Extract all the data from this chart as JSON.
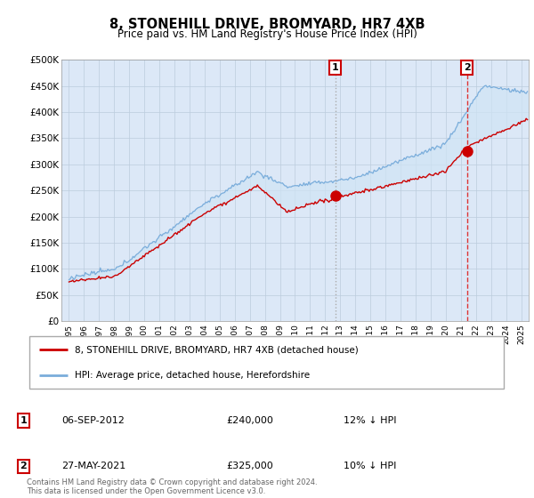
{
  "title": "8, STONEHILL DRIVE, BROMYARD, HR7 4XB",
  "subtitle": "Price paid vs. HM Land Registry's House Price Index (HPI)",
  "legend_line1": "8, STONEHILL DRIVE, BROMYARD, HR7 4XB (detached house)",
  "legend_line2": "HPI: Average price, detached house, Herefordshire",
  "annotation1_num": "1",
  "annotation1_date": "06-SEP-2012",
  "annotation1_price": "£240,000",
  "annotation1_hpi": "12% ↓ HPI",
  "annotation2_num": "2",
  "annotation2_date": "27-MAY-2021",
  "annotation2_price": "£325,000",
  "annotation2_hpi": "10% ↓ HPI",
  "footer": "Contains HM Land Registry data © Crown copyright and database right 2024.\nThis data is licensed under the Open Government Licence v3.0.",
  "red_color": "#cc0000",
  "blue_color": "#7aaddb",
  "fill_color": "#d0e4f5",
  "vline1_color": "#aaaaaa",
  "vline2_color": "#dd3333",
  "background_color": "#dce8f7",
  "grid_color": "#bbccdd",
  "sale1_year": 2012.67,
  "sale2_year": 2021.41,
  "sale1_price": 240000,
  "sale2_price": 325000,
  "ylim_min": 0,
  "ylim_max": 500000,
  "xlim_min": 1994.5,
  "xlim_max": 2025.5
}
